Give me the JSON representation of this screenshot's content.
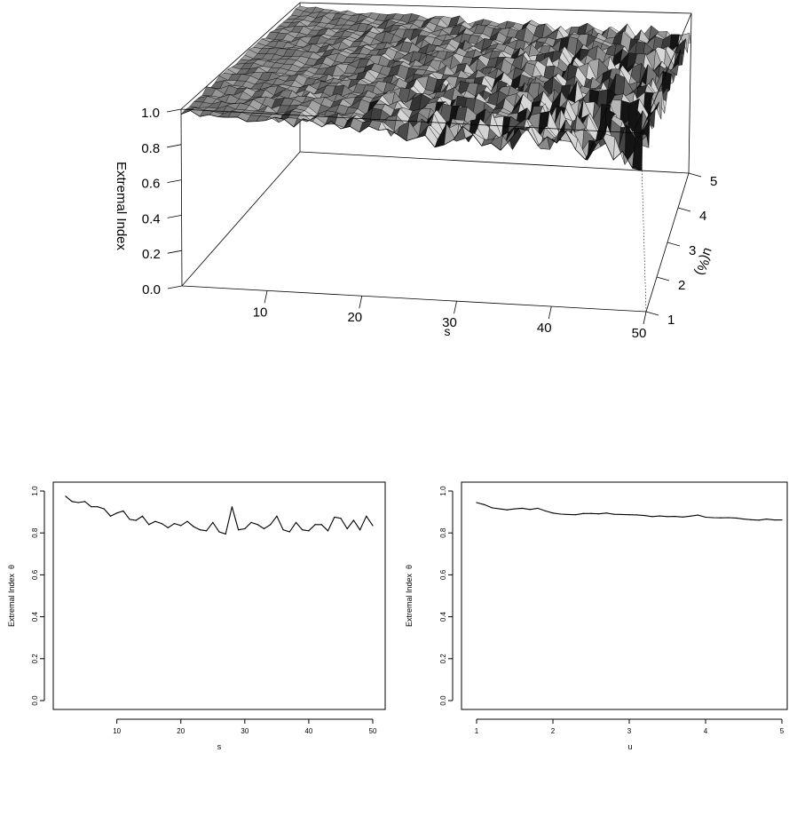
{
  "chart_data": [
    {
      "type": "surface",
      "xlabel": "s",
      "ylabel": "u(%)",
      "zlabel": "Extremal Index",
      "xlim": [
        1,
        50
      ],
      "ylim": [
        1,
        5
      ],
      "zlim": [
        0,
        1
      ],
      "x_ticks": [
        "10",
        "20",
        "30",
        "40",
        "50"
      ],
      "y_ticks": [
        "1",
        "2",
        "3",
        "4",
        "5"
      ],
      "z_ticks": [
        "0.0",
        "0.2",
        "0.4",
        "0.6",
        "0.8",
        "1.0"
      ],
      "surface_color": "#808080"
    },
    {
      "type": "line",
      "xlabel": "s",
      "ylabel": "Extremal Index  θ",
      "xlim": [
        2,
        50
      ],
      "ylim": [
        0,
        1
      ],
      "x_ticks": [
        "10",
        "20",
        "30",
        "40",
        "50"
      ],
      "y_ticks": [
        "0.0",
        "0.2",
        "0.4",
        "0.6",
        "0.8",
        "1.0"
      ],
      "x": [
        2,
        3,
        4,
        5,
        6,
        7,
        8,
        9,
        10,
        11,
        12,
        13,
        14,
        15,
        16,
        17,
        18,
        19,
        20,
        21,
        22,
        23,
        24,
        25,
        26,
        27,
        28,
        29,
        30,
        31,
        32,
        33,
        34,
        35,
        36,
        37,
        38,
        39,
        40,
        41,
        42,
        43,
        44,
        45,
        46,
        47,
        48,
        49,
        50
      ],
      "values": [
        0.975,
        0.95,
        0.945,
        0.95,
        0.925,
        0.925,
        0.915,
        0.88,
        0.895,
        0.905,
        0.865,
        0.86,
        0.88,
        0.84,
        0.855,
        0.845,
        0.825,
        0.845,
        0.835,
        0.855,
        0.83,
        0.815,
        0.81,
        0.85,
        0.805,
        0.795,
        0.925,
        0.815,
        0.82,
        0.85,
        0.84,
        0.82,
        0.84,
        0.88,
        0.815,
        0.805,
        0.85,
        0.815,
        0.81,
        0.84,
        0.84,
        0.81,
        0.875,
        0.87,
        0.82,
        0.86,
        0.815,
        0.88,
        0.835
      ]
    },
    {
      "type": "line",
      "xlabel": "u",
      "ylabel": "Extremal Index  θ",
      "xlim": [
        1,
        5
      ],
      "ylim": [
        0,
        1
      ],
      "x_ticks": [
        "1",
        "2",
        "3",
        "4",
        "5"
      ],
      "y_ticks": [
        "0.0",
        "0.2",
        "0.4",
        "0.6",
        "0.8",
        "1.0"
      ],
      "x": [
        1.0,
        1.1,
        1.2,
        1.3,
        1.4,
        1.5,
        1.6,
        1.7,
        1.8,
        1.9,
        2.0,
        2.1,
        2.2,
        2.3,
        2.4,
        2.5,
        2.6,
        2.7,
        2.8,
        2.9,
        3.0,
        3.1,
        3.2,
        3.3,
        3.4,
        3.5,
        3.6,
        3.7,
        3.8,
        3.9,
        4.0,
        4.1,
        4.2,
        4.3,
        4.4,
        4.5,
        4.6,
        4.7,
        4.8,
        4.9,
        5.0
      ],
      "values": [
        0.945,
        0.935,
        0.92,
        0.915,
        0.91,
        0.915,
        0.918,
        0.912,
        0.918,
        0.905,
        0.895,
        0.89,
        0.888,
        0.887,
        0.893,
        0.893,
        0.891,
        0.895,
        0.889,
        0.888,
        0.887,
        0.886,
        0.883,
        0.878,
        0.881,
        0.878,
        0.879,
        0.876,
        0.88,
        0.885,
        0.875,
        0.873,
        0.872,
        0.873,
        0.871,
        0.866,
        0.863,
        0.861,
        0.866,
        0.862,
        0.862
      ]
    }
  ]
}
